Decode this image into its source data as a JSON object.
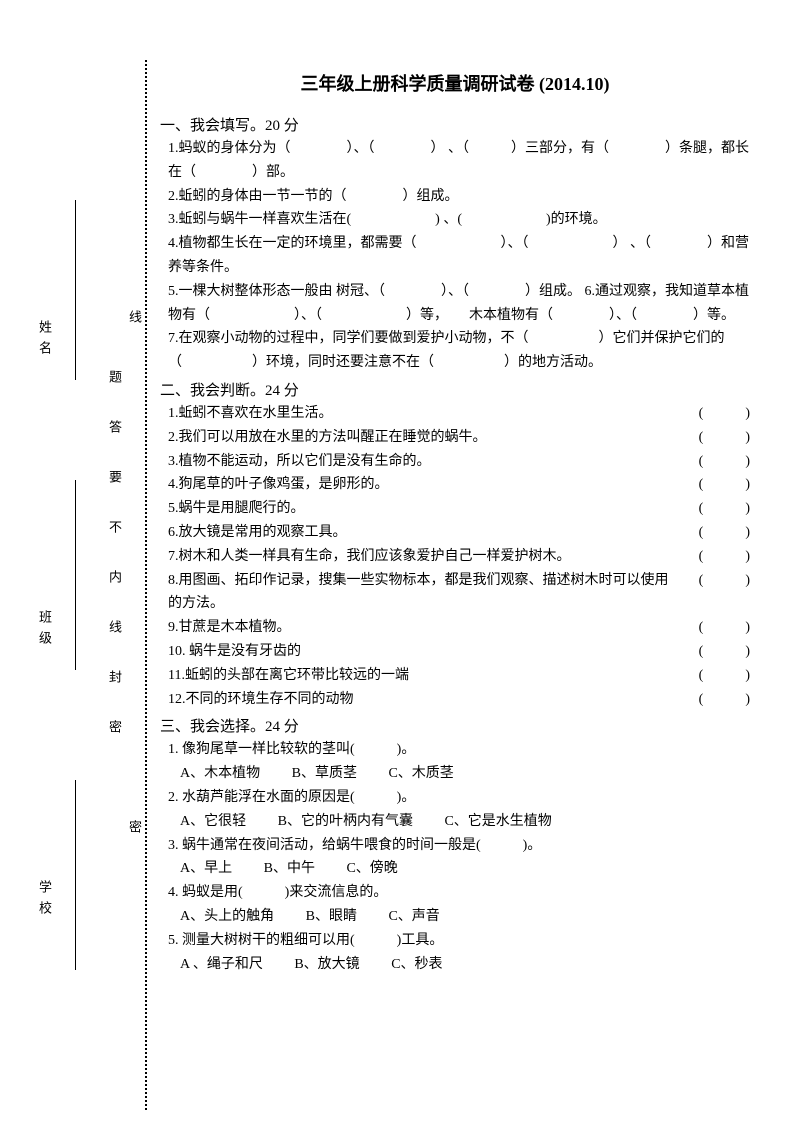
{
  "title": "三年级上册科学质量调研试卷  (2014.10)",
  "sideLabels": {
    "name": "姓名",
    "class": "班级",
    "school": "学校"
  },
  "sealLine": {
    "mi": "密",
    "feng": "封",
    "xian": "线",
    "nei": "内",
    "bu": "不",
    "yao": "要",
    "da": "答",
    "ti": "题"
  },
  "section1": {
    "header": "一、我会填写。20 分",
    "q1": "1.蚂蚁的身体分为（　　　　）、（　　　　） 、（　　　）三部分，有（　　　　）条腿，都长在（　　　　）部。",
    "q2": "2.蚯蚓的身体由一节一节的（　　　　）组成。",
    "q3": "3.蚯蚓与蜗牛一样喜欢生活在(　　　　　　) 、(　　　　　　)的环境。",
    "q4": "4.植物都生长在一定的环境里，都需要（　　　　　　）、（　　　　　　） 、（　　　　）和营养等条件。",
    "q5": "5.一棵大树整体形态一般由 树冠、（　　　　）、（　　　　）组成。 6.通过观察，我知道草本植物有（　　　　　　）、（　　　　　　）等，　　木本植物有（　　　　）、（　　　　）等。",
    "q7": "7.在观察小动物的过程中，同学们要做到爱护小动物，不（　　　　　）它们并保护它们的（　　　　　）环境，同时还要注意不在（　　　　　）的地方活动。"
  },
  "section2": {
    "header": "二、我会判断。24 分",
    "q1": "1.蚯蚓不喜欢在水里生活。",
    "q2": "2.我们可以用放在水里的方法叫醒正在睡觉的蜗牛。",
    "q3": "3.植物不能运动，所以它们是没有生命的。",
    "q4": "4.狗尾草的叶子像鸡蛋，是卵形的。",
    "q5": "5.蜗牛是用腿爬行的。",
    "q6": "6.放大镜是常用的观察工具。",
    "q7": "7.树木和人类一样具有生命，我们应该象爱护自己一样爱护树木。",
    "q8": "8.用图画、拓印作记录，搜集一些实物标本，都是我们观察、描述树木时可以使用的方法。",
    "q9": "9.甘蔗是木本植物。",
    "q10": "10.  蜗牛是没有牙齿的",
    "q11": "11.蚯蚓的头部在离它环带比较远的一端",
    "q12": "12.不同的环境生存不同的动物",
    "paren": "(　　　)"
  },
  "section3": {
    "header": "三、我会选择。24 分",
    "q1": "1.  像狗尾草一样比较软的茎叫(　　　)。",
    "q1opts": {
      "a": "A、木本植物",
      "b": "B、草质茎",
      "c": "C、木质茎"
    },
    "q2": "2.  水葫芦能浮在水面的原因是(　　　)。",
    "q2opts": {
      "a": "A、它很轻",
      "b": "B、它的叶柄内有气囊",
      "c": "C、它是水生植物"
    },
    "q3": "3.  蜗牛通常在夜间活动，给蜗牛喂食的时间一般是(　　　)。",
    "q3opts": {
      "a": "A、早上",
      "b": "B、中午",
      "c": "C、傍晚"
    },
    "q4": "4.  蚂蚁是用(　　　)来交流信息的。",
    "q4opts": {
      "a": "A、头上的触角",
      "b": "B、眼睛",
      "c": "C、声音"
    },
    "q5": "5.  测量大树树干的粗细可以用(　　　)工具。",
    "q5opts": {
      "a": "A 、绳子和尺",
      "b": "B、放大镜",
      "c": "C、秒表"
    }
  }
}
